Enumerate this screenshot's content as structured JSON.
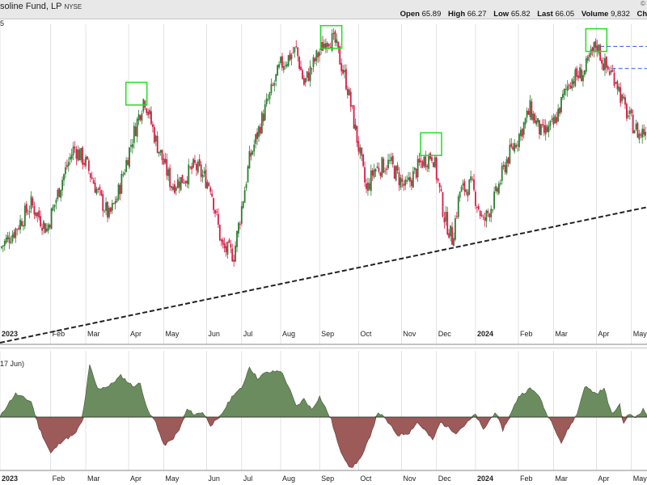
{
  "header": {
    "title": "United States Gasoline Fund, LP",
    "title_visible": "soline Fund, LP",
    "exchange": "NYSE",
    "corner_mark": "©",
    "open_label": "Open",
    "open_value": "65.89",
    "high_label": "High",
    "high_value": "66.27",
    "low_label": "Low",
    "low_value": "65.82",
    "last_label": "Last",
    "last_value": "66.05",
    "volume_label": "Volume",
    "volume_value": "9,832",
    "chg_label": "Chg"
  },
  "main_axis_edge_label": "5",
  "oscillator_label": "17 Jun)",
  "colors": {
    "up": "#2e7d32",
    "down": "#d81b47",
    "trendline": "#222222",
    "highlight_box": "#22dd22",
    "resistance": "#3355ee",
    "osc_positive": "#6b8c5e",
    "osc_negative": "#9c5b58",
    "grid": "#d0d0d0"
  },
  "chart_data": [
    {
      "type": "candlestick",
      "title": "",
      "x_labels": [
        "2023",
        "Feb",
        "Mar",
        "Apr",
        "May",
        "Jun",
        "Jul",
        "Aug",
        "Sep",
        "Oct",
        "Nov",
        "Dec",
        "2024",
        "Feb",
        "Mar",
        "Apr",
        "May"
      ],
      "bold_x_labels": [
        "2023",
        "2024"
      ],
      "anchors": [
        {
          "t": 0,
          "v": 0.3
        },
        {
          "t": 2,
          "v": 0.36
        },
        {
          "t": 4,
          "v": 0.44
        },
        {
          "t": 6,
          "v": 0.36
        },
        {
          "t": 8,
          "v": 0.52
        },
        {
          "t": 9.5,
          "v": 0.62
        },
        {
          "t": 11,
          "v": 0.57
        },
        {
          "t": 13,
          "v": 0.45
        },
        {
          "t": 14,
          "v": 0.4
        },
        {
          "t": 15,
          "v": 0.46
        },
        {
          "t": 17,
          "v": 0.65
        },
        {
          "t": 18.5,
          "v": 0.78
        },
        {
          "t": 20,
          "v": 0.64
        },
        {
          "t": 22,
          "v": 0.5
        },
        {
          "t": 23.5,
          "v": 0.52
        },
        {
          "t": 25,
          "v": 0.56
        },
        {
          "t": 27,
          "v": 0.5
        },
        {
          "t": 28.5,
          "v": 0.3
        },
        {
          "t": 30,
          "v": 0.28
        },
        {
          "t": 32,
          "v": 0.58
        },
        {
          "t": 34,
          "v": 0.74
        },
        {
          "t": 36,
          "v": 0.88
        },
        {
          "t": 38,
          "v": 0.93
        },
        {
          "t": 39,
          "v": 0.82
        },
        {
          "t": 40.5,
          "v": 0.9
        },
        {
          "t": 42,
          "v": 0.97
        },
        {
          "t": 43,
          "v": 0.95
        },
        {
          "t": 44.5,
          "v": 0.82
        },
        {
          "t": 46,
          "v": 0.62
        },
        {
          "t": 47,
          "v": 0.48
        },
        {
          "t": 48,
          "v": 0.55
        },
        {
          "t": 50,
          "v": 0.57
        },
        {
          "t": 52,
          "v": 0.49
        },
        {
          "t": 54,
          "v": 0.57
        },
        {
          "t": 55.5,
          "v": 0.6
        },
        {
          "t": 57,
          "v": 0.4
        },
        {
          "t": 58,
          "v": 0.33
        },
        {
          "t": 59,
          "v": 0.48
        },
        {
          "t": 60.5,
          "v": 0.5
        },
        {
          "t": 62,
          "v": 0.38
        },
        {
          "t": 63.5,
          "v": 0.46
        },
        {
          "t": 65,
          "v": 0.58
        },
        {
          "t": 67,
          "v": 0.68
        },
        {
          "t": 68,
          "v": 0.74
        },
        {
          "t": 69.5,
          "v": 0.66
        },
        {
          "t": 71,
          "v": 0.69
        },
        {
          "t": 73,
          "v": 0.83
        },
        {
          "t": 75,
          "v": 0.86
        },
        {
          "t": 76.5,
          "v": 0.95
        },
        {
          "t": 77.5,
          "v": 0.88
        },
        {
          "t": 79,
          "v": 0.84
        },
        {
          "t": 80,
          "v": 0.75
        },
        {
          "t": 81,
          "v": 0.7
        },
        {
          "t": 82,
          "v": 0.66
        },
        {
          "t": 83,
          "v": 0.68
        }
      ],
      "trendline": {
        "from": {
          "t": 0,
          "v": 0.0
        },
        "to": {
          "t": 83,
          "v": 0.43
        }
      },
      "highlight_boxes": [
        {
          "t": 17.5,
          "v": 0.79
        },
        {
          "t": 42.5,
          "v": 0.97
        },
        {
          "t": 55.3,
          "v": 0.63
        },
        {
          "t": 76.5,
          "v": 0.96
        }
      ],
      "resistance_levels": [
        {
          "from_t": 77,
          "v": 0.94
        },
        {
          "from_t": 78.5,
          "v": 0.87
        }
      ]
    },
    {
      "type": "area",
      "title": "",
      "x_labels": [
        "2023",
        "Feb",
        "Mar",
        "Apr",
        "May",
        "Jun",
        "Jul",
        "Aug",
        "Sep",
        "Oct",
        "Nov",
        "Dec",
        "2024",
        "Feb",
        "Mar",
        "Apr",
        "May"
      ],
      "bold_x_labels": [
        "2023",
        "2024"
      ],
      "baseline": 0,
      "points": [
        {
          "t": 0,
          "v": 0.0
        },
        {
          "t": 1,
          "v": 0.25
        },
        {
          "t": 2,
          "v": 0.45
        },
        {
          "t": 4,
          "v": 0.3
        },
        {
          "t": 5,
          "v": -0.2
        },
        {
          "t": 6.5,
          "v": -0.7
        },
        {
          "t": 8,
          "v": -0.45
        },
        {
          "t": 9.5,
          "v": -0.35
        },
        {
          "t": 10.5,
          "v": -0.1
        },
        {
          "t": 11.5,
          "v": 1.0
        },
        {
          "t": 12.5,
          "v": 0.55
        },
        {
          "t": 14,
          "v": 0.6
        },
        {
          "t": 15.5,
          "v": 0.8
        },
        {
          "t": 17,
          "v": 0.6
        },
        {
          "t": 18,
          "v": 0.65
        },
        {
          "t": 19,
          "v": 0.1
        },
        {
          "t": 20,
          "v": -0.1
        },
        {
          "t": 21,
          "v": -0.55
        },
        {
          "t": 22,
          "v": -0.45
        },
        {
          "t": 23,
          "v": -0.25
        },
        {
          "t": 24,
          "v": 0.15
        },
        {
          "t": 25,
          "v": 0.05
        },
        {
          "t": 26,
          "v": 0.1
        },
        {
          "t": 27,
          "v": -0.15
        },
        {
          "t": 28,
          "v": -0.05
        },
        {
          "t": 29,
          "v": 0.2
        },
        {
          "t": 30,
          "v": 0.45
        },
        {
          "t": 31,
          "v": 0.55
        },
        {
          "t": 32,
          "v": 0.98
        },
        {
          "t": 33,
          "v": 0.75
        },
        {
          "t": 34,
          "v": 0.85
        },
        {
          "t": 36,
          "v": 0.9
        },
        {
          "t": 37,
          "v": 0.6
        },
        {
          "t": 38,
          "v": 0.2
        },
        {
          "t": 39,
          "v": 0.35
        },
        {
          "t": 40,
          "v": 0.15
        },
        {
          "t": 41,
          "v": 0.4
        },
        {
          "t": 42,
          "v": 0.1
        },
        {
          "t": 42.5,
          "v": -0.05
        },
        {
          "t": 43.5,
          "v": -0.6
        },
        {
          "t": 45,
          "v": -1.0
        },
        {
          "t": 46.5,
          "v": -0.75
        },
        {
          "t": 47.5,
          "v": -0.35
        },
        {
          "t": 48.5,
          "v": 0.1
        },
        {
          "t": 49.5,
          "v": -0.05
        },
        {
          "t": 51,
          "v": -0.35
        },
        {
          "t": 52.5,
          "v": -0.3
        },
        {
          "t": 53.5,
          "v": -0.1
        },
        {
          "t": 54.5,
          "v": -0.25
        },
        {
          "t": 55.5,
          "v": -0.45
        },
        {
          "t": 56.5,
          "v": -0.1
        },
        {
          "t": 57.5,
          "v": -0.2
        },
        {
          "t": 58.5,
          "v": -0.3
        },
        {
          "t": 60,
          "v": -0.1
        },
        {
          "t": 61,
          "v": 0.05
        },
        {
          "t": 62,
          "v": -0.25
        },
        {
          "t": 63.5,
          "v": 0.1
        },
        {
          "t": 64.5,
          "v": -0.25
        },
        {
          "t": 65.5,
          "v": 0.05
        },
        {
          "t": 66.5,
          "v": 0.4
        },
        {
          "t": 68,
          "v": 0.55
        },
        {
          "t": 69,
          "v": 0.45
        },
        {
          "t": 70,
          "v": 0.1
        },
        {
          "t": 71,
          "v": -0.15
        },
        {
          "t": 72,
          "v": -0.5
        },
        {
          "t": 73,
          "v": -0.2
        },
        {
          "t": 74,
          "v": 0.05
        },
        {
          "t": 75,
          "v": 0.6
        },
        {
          "t": 76.5,
          "v": 0.45
        },
        {
          "t": 77.5,
          "v": 0.55
        },
        {
          "t": 78.5,
          "v": 0.05
        },
        {
          "t": 79.5,
          "v": 0.25
        },
        {
          "t": 80,
          "v": -0.15
        },
        {
          "t": 80.5,
          "v": 0.05
        },
        {
          "t": 81.5,
          "v": 0.0
        },
        {
          "t": 82.5,
          "v": 0.15
        },
        {
          "t": 83,
          "v": 0.05
        }
      ]
    }
  ]
}
